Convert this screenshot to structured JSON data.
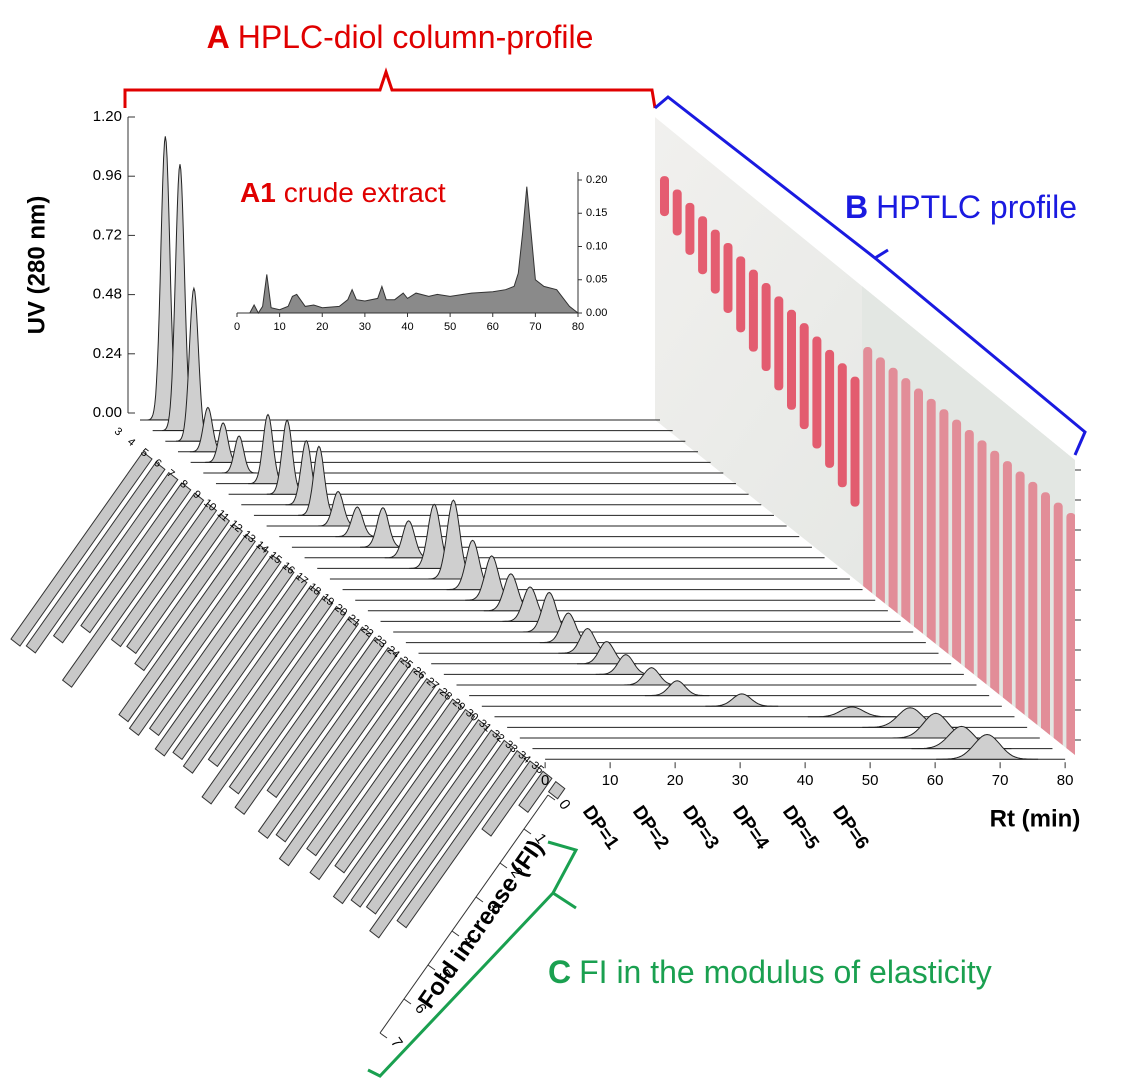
{
  "chart_data": [
    {
      "type": "waterfall",
      "title_letter": "A",
      "title": "HPLC-diol column-profile",
      "ylabel": "UV (280 nm)",
      "xlabel": "Rt (min)",
      "ylim": [
        0,
        1.2
      ],
      "yticks": [
        {
          "value": 0,
          "label": "0.00"
        },
        {
          "value": 0.24,
          "label": "0.24"
        },
        {
          "value": 0.48,
          "label": "0.48"
        },
        {
          "value": 0.72,
          "label": "0.72"
        },
        {
          "value": 0.96,
          "label": "0.96"
        },
        {
          "value": 1.2,
          "label": "1.20"
        }
      ],
      "xlim": [
        0,
        80
      ],
      "xticks": [
        0,
        10,
        20,
        30,
        40,
        50,
        60,
        70,
        80
      ],
      "peak_rt": [
        3.9,
        4.2,
        4.4,
        4.6,
        5.0,
        5.5,
        8,
        9,
        10,
        10,
        11,
        12,
        14,
        16,
        18,
        19,
        20,
        21,
        22,
        23,
        24,
        25,
        26,
        27,
        28,
        30,
        32,
        40,
        55,
        62,
        64,
        66,
        68
      ],
      "peak_uv": [
        1.15,
        1.08,
        0.62,
        0.18,
        0.16,
        0.15,
        0.28,
        0.3,
        0.26,
        0.28,
        0.14,
        0.12,
        0.16,
        0.15,
        0.26,
        0.32,
        0.2,
        0.18,
        0.15,
        0.14,
        0.16,
        0.12,
        0.1,
        0.09,
        0.08,
        0.07,
        0.06,
        0.05,
        0.04,
        0.08,
        0.1,
        0.09,
        0.1
      ],
      "peak_labels": [
        "DP=1",
        "DP=2",
        "DP=3",
        "DP=4",
        "DP=5",
        "DP=6"
      ]
    },
    {
      "type": "area",
      "title_letter": "A1",
      "title": "crude extract",
      "x": [
        0,
        3,
        4,
        5,
        6,
        7,
        8,
        10,
        12,
        13,
        14,
        16,
        18,
        20,
        24,
        26,
        27,
        28,
        30,
        33,
        34,
        35,
        37,
        39,
        40,
        42,
        45,
        47,
        50,
        55,
        60,
        63,
        65,
        66,
        67,
        68,
        69,
        70,
        72,
        75,
        78,
        80
      ],
      "values": [
        0,
        0,
        0.012,
        0,
        0.01,
        0.058,
        0.008,
        0.005,
        0.01,
        0.025,
        0.028,
        0.01,
        0.012,
        0.008,
        0.01,
        0.02,
        0.035,
        0.02,
        0.018,
        0.022,
        0.04,
        0.02,
        0.02,
        0.03,
        0.022,
        0.03,
        0.025,
        0.028,
        0.025,
        0.03,
        0.032,
        0.035,
        0.04,
        0.06,
        0.12,
        0.19,
        0.12,
        0.05,
        0.04,
        0.035,
        0.01,
        0
      ],
      "xlim": [
        0,
        80
      ],
      "xticks": [
        0,
        10,
        20,
        30,
        40,
        50,
        60,
        70,
        80
      ],
      "ylim": [
        0,
        0.2
      ],
      "yticks": [
        {
          "value": 0,
          "label": "0.00"
        },
        {
          "value": 0.05,
          "label": "0.05"
        },
        {
          "value": 0.1,
          "label": "0.10"
        },
        {
          "value": 0.15,
          "label": "0.15"
        },
        {
          "value": 0.2,
          "label": "0.20"
        }
      ]
    },
    {
      "type": "bar",
      "ylabel": "Fold increase (FI)",
      "categories": [
        3,
        4,
        5,
        6,
        7,
        8,
        9,
        10,
        11,
        12,
        13,
        14,
        15,
        16,
        17,
        18,
        19,
        20,
        21,
        22,
        23,
        24,
        25,
        26,
        27,
        28,
        29,
        30,
        31,
        32,
        33,
        34,
        35
      ],
      "values": [
        5.5,
        5.4,
        4.8,
        4.2,
        5.5,
        4.0,
        3.9,
        4.1,
        5.3,
        5.4,
        5.1,
        5.4,
        5.2,
        5.3,
        4.8,
        5.6,
        5.0,
        5.3,
        4.5,
        5.4,
        5.2,
        5.6,
        5.0,
        5.4,
        4.9,
        5.5,
        5.3,
        5.2,
        5.6,
        5.0,
        2.0,
        1.0,
        0.3
      ],
      "ylim": [
        0,
        7
      ],
      "yticks": [
        0,
        1,
        2,
        3,
        4,
        5,
        6,
        7
      ]
    }
  ],
  "annotations": [
    {
      "letter": "B",
      "text": "HPTLC profile"
    },
    {
      "letter": "C",
      "text": "FI in the modulus of elasticity"
    }
  ]
}
